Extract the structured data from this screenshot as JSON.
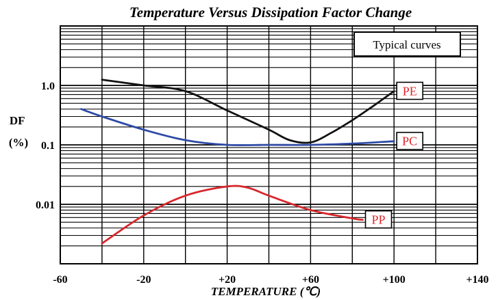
{
  "chart_data": {
    "type": "line",
    "title": "Temperature Versus Dissipation Factor Change",
    "xlabel": "TEMPERATURE (℃)",
    "ylabel": "DF (%)",
    "ylabel_lines": [
      "DF",
      "(%)"
    ],
    "annotation": "Typical curves",
    "xlim": [
      -60,
      140
    ],
    "ylim": [
      0.001,
      10
    ],
    "yscale": "log",
    "x_ticks": [
      -60,
      -20,
      20,
      60,
      100,
      140
    ],
    "x_tick_labels": [
      "-60",
      "-20",
      "+20",
      "+60",
      "+100",
      "+140"
    ],
    "y_ticks": [
      1.0,
      0.1,
      0.01
    ],
    "y_tick_labels": [
      "1.0",
      "0.1",
      "0.01"
    ],
    "grid": true,
    "series": [
      {
        "name": "PE",
        "color": "#111111",
        "label_color": "#e0242a",
        "x": [
          -40,
          -20,
          0,
          20,
          40,
          50,
          60,
          70,
          80,
          90,
          100
        ],
        "y": [
          1.25,
          1.0,
          0.8,
          0.38,
          0.18,
          0.12,
          0.11,
          0.16,
          0.26,
          0.45,
          0.8
        ]
      },
      {
        "name": "PC",
        "color": "#2d4aa5",
        "label_color": "#e0242a",
        "x": [
          -50,
          -40,
          -20,
          0,
          20,
          40,
          60,
          80,
          100
        ],
        "y": [
          0.4,
          0.3,
          0.18,
          0.12,
          0.1,
          0.1,
          0.1,
          0.105,
          0.115
        ]
      },
      {
        "name": "PP",
        "color": "#d8262c",
        "label_color": "#e0242a",
        "x": [
          -40,
          -20,
          0,
          20,
          30,
          40,
          60,
          80,
          85
        ],
        "y": [
          0.0022,
          0.0065,
          0.014,
          0.02,
          0.019,
          0.014,
          0.008,
          0.0058,
          0.0055
        ]
      }
    ]
  }
}
